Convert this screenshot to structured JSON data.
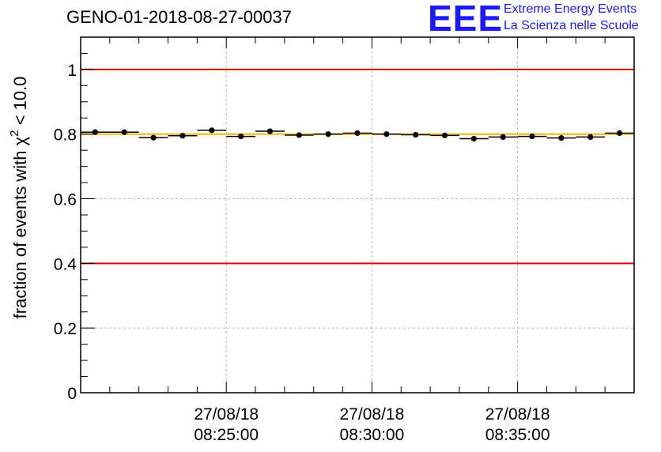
{
  "header": {
    "title": "GENO-01-2018-08-27-00037"
  },
  "logo": {
    "mark": "EEE",
    "line1": "Extreme Energy Events",
    "line2": "La Scienza nelle Scuole",
    "color": "#1a1aff"
  },
  "chart_data": {
    "type": "scatter",
    "title": "GENO-01-2018-08-27-00037",
    "ylabel_prefix": "fraction of events with ",
    "ylabel_symbol": "χ",
    "ylabel_sup": "2",
    "ylabel_suffix": " < 10.0",
    "xlabel": "",
    "ylim": [
      0,
      1.1
    ],
    "yticks": [
      0,
      0.2,
      0.4,
      0.6,
      0.8,
      1
    ],
    "ytick_labels": [
      "0",
      "0.2",
      "0.4",
      "0.6",
      "0.8",
      "1"
    ],
    "xlim": [
      "27/08/18 08:20:00",
      "27/08/18 08:39:00"
    ],
    "xticks": [
      {
        "time": "27/08/18 08:25:00",
        "date": "27/08/18",
        "clock": "08:25:00"
      },
      {
        "time": "27/08/18 08:30:00",
        "date": "27/08/18",
        "clock": "08:30:00"
      },
      {
        "time": "27/08/18 08:35:00",
        "date": "27/08/18",
        "clock": "08:35:00"
      }
    ],
    "grid": true,
    "reference_lines": [
      {
        "y": 1.0,
        "color": "#e00000"
      },
      {
        "y": 0.4,
        "color": "#e00000"
      },
      {
        "y": 0.8,
        "color": "#f5b800"
      }
    ],
    "series": [
      {
        "marker_color": "#000000",
        "bins": [
          {
            "start": "08:20:00",
            "end": "08:21:00",
            "y": 0.806
          },
          {
            "start": "08:21:00",
            "end": "08:22:00",
            "y": 0.806
          },
          {
            "start": "08:22:00",
            "end": "08:23:00",
            "y": 0.789
          },
          {
            "start": "08:23:00",
            "end": "08:24:00",
            "y": 0.795
          },
          {
            "start": "08:24:00",
            "end": "08:25:00",
            "y": 0.812
          },
          {
            "start": "08:25:00",
            "end": "08:26:00",
            "y": 0.793
          },
          {
            "start": "08:26:00",
            "end": "08:27:00",
            "y": 0.809
          },
          {
            "start": "08:27:00",
            "end": "08:28:00",
            "y": 0.797
          },
          {
            "start": "08:28:00",
            "end": "08:29:00",
            "y": 0.8
          },
          {
            "start": "08:29:00",
            "end": "08:30:00",
            "y": 0.803
          },
          {
            "start": "08:30:00",
            "end": "08:31:00",
            "y": 0.8
          },
          {
            "start": "08:31:00",
            "end": "08:32:00",
            "y": 0.798
          },
          {
            "start": "08:32:00",
            "end": "08:33:00",
            "y": 0.796
          },
          {
            "start": "08:33:00",
            "end": "08:34:00",
            "y": 0.786
          },
          {
            "start": "08:34:00",
            "end": "08:35:00",
            "y": 0.791
          },
          {
            "start": "08:35:00",
            "end": "08:36:00",
            "y": 0.793
          },
          {
            "start": "08:36:00",
            "end": "08:37:00",
            "y": 0.788
          },
          {
            "start": "08:37:00",
            "end": "08:38:00",
            "y": 0.791
          },
          {
            "start": "08:38:00",
            "end": "08:39:00",
            "y": 0.803
          }
        ]
      }
    ]
  }
}
